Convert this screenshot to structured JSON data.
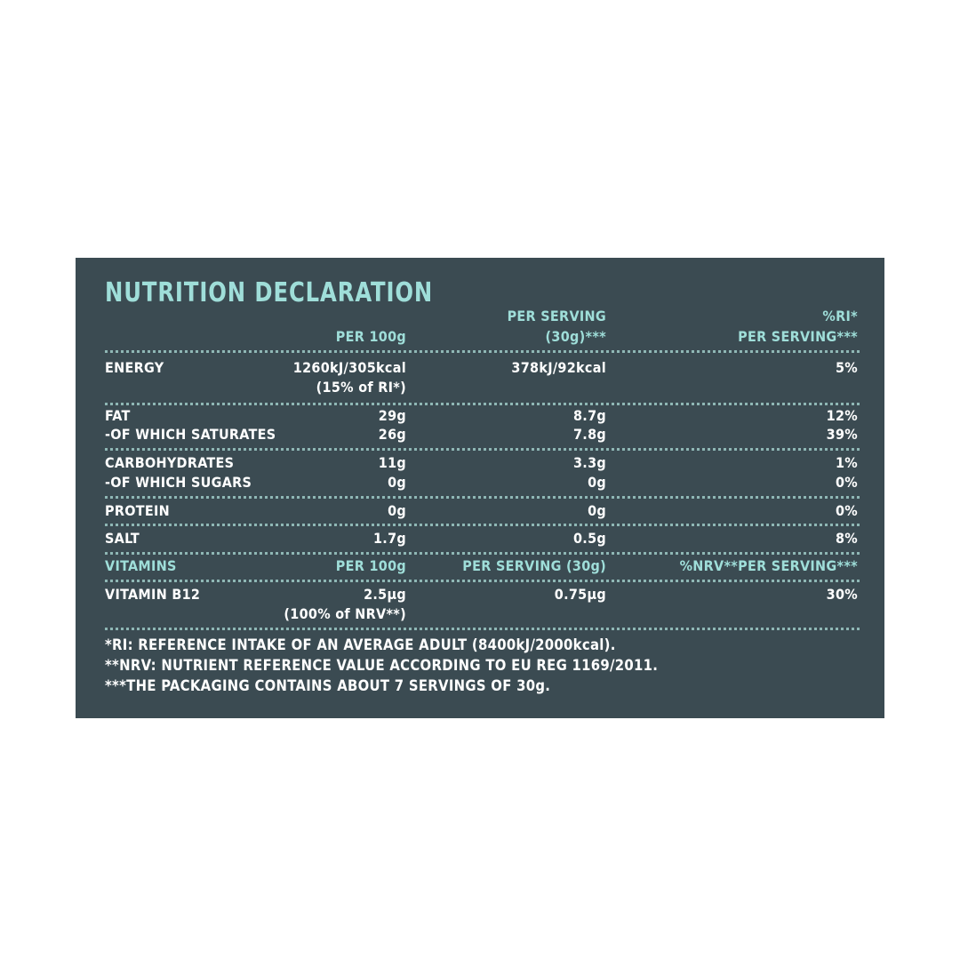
{
  "title": "NUTRITION DECLARATION",
  "header": {
    "per100": "PER 100g",
    "perServing_line1": "PER SERVING",
    "perServing_line2": "(30g)***",
    "ri_line1": "%RI*",
    "ri_line2": "PER SERVING***"
  },
  "rows": {
    "energy": {
      "label": "ENERGY",
      "per100": "1260kJ/305kcal",
      "per100_sub": "(15% of RI*)",
      "serving": "378kJ/92kcal",
      "ri": "5%"
    },
    "fat": {
      "label": "FAT",
      "per100": "29g",
      "serving": "8.7g",
      "ri": "12%"
    },
    "saturates": {
      "label": "-OF WHICH SATURATES",
      "per100": "26g",
      "serving": "7.8g",
      "ri": "39%"
    },
    "carbs": {
      "label": "CARBOHYDRATES",
      "per100": "11g",
      "serving": "3.3g",
      "ri": "1%"
    },
    "sugars": {
      "label": "-OF WHICH SUGARS",
      "per100": "0g",
      "serving": "0g",
      "ri": "0%"
    },
    "protein": {
      "label": "PROTEIN",
      "per100": "0g",
      "serving": "0g",
      "ri": "0%"
    },
    "salt": {
      "label": "SALT",
      "per100": "1.7g",
      "serving": "0.5g",
      "ri": "8%"
    }
  },
  "vitamins_header": {
    "label": "VITAMINS",
    "per100": "PER 100g",
    "serving": "PER SERVING (30g)",
    "nrv": "%NRV**PER SERVING***"
  },
  "vitamin_b12": {
    "label": "VITAMIN B12",
    "per100": "2.5µg",
    "per100_sub": "(100% of NRV**)",
    "serving": "0.75µg",
    "nrv": "30%"
  },
  "footnotes": [
    "*RI: REFERENCE INTAKE OF AN AVERAGE ADULT (8400kJ/2000kcal).",
    "**NRV: NUTRIENT REFERENCE VALUE ACCORDING TO EU REG 1169/2011.",
    "***THE PACKAGING CONTAINS ABOUT 7 SERVINGS OF 30g."
  ],
  "colors": {
    "panel": "#3b4b52",
    "accent": "#9fded9",
    "text": "#ffffff"
  }
}
